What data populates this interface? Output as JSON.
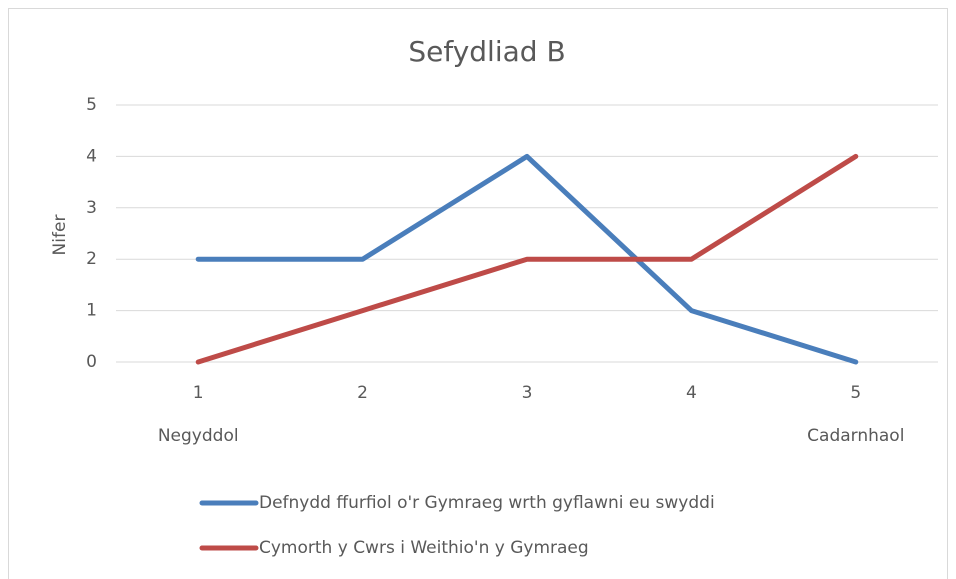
{
  "chart_data": {
    "type": "line",
    "title": "Sefydliad B",
    "y_label": "Nifer",
    "categories": [
      "1",
      "2",
      "3",
      "4",
      "5"
    ],
    "category_sublabels": [
      "Negyddol",
      null,
      null,
      null,
      "Cadarnhaol"
    ],
    "series": [
      {
        "name": "Defnydd ffurfiol o'r Gymraeg wrth gyflawni eu swyddi",
        "color": "#4a7ebb",
        "values": [
          2,
          2,
          4,
          1,
          0
        ]
      },
      {
        "name": "Cymorth y Cwrs i Weithio'n y Gymraeg",
        "color": "#be4b48",
        "values": [
          0,
          1,
          2,
          2,
          4
        ]
      }
    ],
    "ylim": [
      0,
      5
    ],
    "yticks": [
      0,
      1,
      2,
      3,
      4,
      5
    ],
    "grid": true,
    "legend": "bottom"
  }
}
